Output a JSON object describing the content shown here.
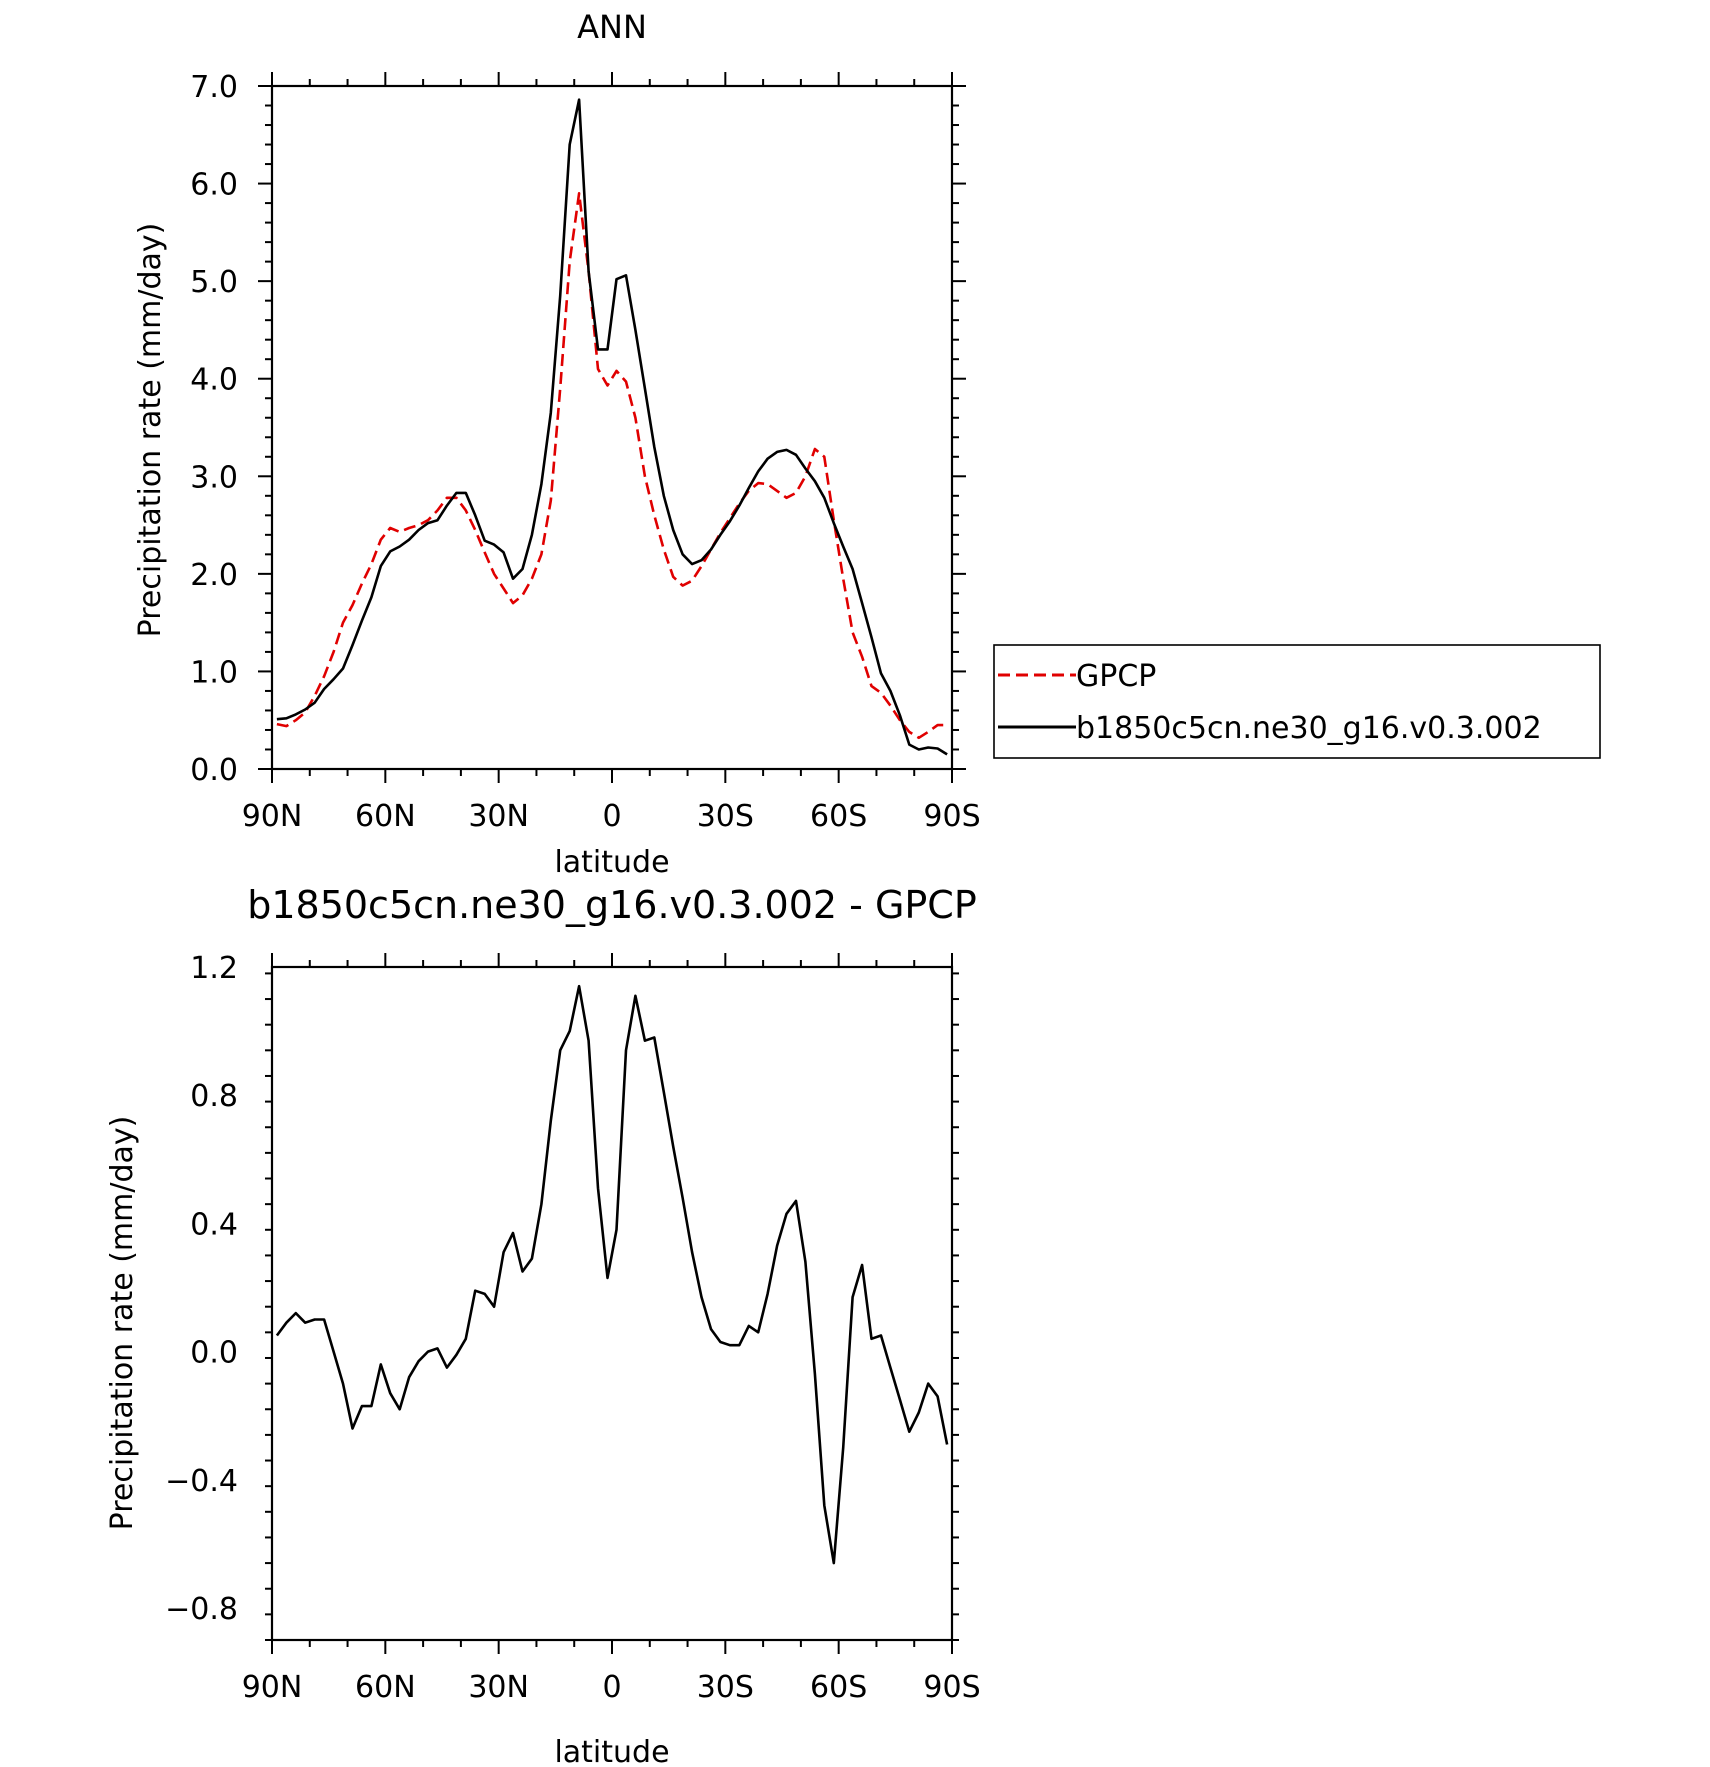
{
  "chart_data": [
    {
      "type": "line",
      "title": "ANN",
      "xlabel": "latitude",
      "ylabel": "Precipitation rate (mm/day)",
      "xlim": [
        90,
        -90
      ],
      "ylim": [
        0,
        7
      ],
      "xticks": [
        90,
        60,
        30,
        0,
        -30,
        -60,
        -90
      ],
      "xtick_labels": [
        "90N",
        "60N",
        "30N",
        "0",
        "30S",
        "60S",
        "90S"
      ],
      "yticks": [
        0,
        1,
        2,
        3,
        4,
        5,
        6,
        7
      ],
      "ytick_labels": [
        "0.0",
        "1.0",
        "2.0",
        "3.0",
        "4.0",
        "5.0",
        "6.0",
        "7.0"
      ],
      "grid": false,
      "legend_position": "right",
      "series": [
        {
          "name": "GPCP",
          "color": "#e00000",
          "style": "dashed",
          "x": [
            88.7,
            86.2,
            83.7,
            81.2,
            78.7,
            76.2,
            73.7,
            71.2,
            68.7,
            66.2,
            63.7,
            61.2,
            58.7,
            56.2,
            53.7,
            51.2,
            48.7,
            46.2,
            43.7,
            41.2,
            38.7,
            36.2,
            33.7,
            31.2,
            28.7,
            26.2,
            23.7,
            21.2,
            18.7,
            16.2,
            13.7,
            11.2,
            8.7,
            6.2,
            3.7,
            1.2,
            -1.2,
            -3.7,
            -6.2,
            -8.7,
            -11.2,
            -13.7,
            -16.2,
            -18.7,
            -21.2,
            -23.7,
            -26.2,
            -28.7,
            -31.2,
            -33.7,
            -36.2,
            -38.7,
            -41.2,
            -43.7,
            -46.2,
            -48.7,
            -51.2,
            -53.7,
            -56.2,
            -58.7,
            -61.2,
            -63.7,
            -66.2,
            -68.7,
            -71.2,
            -73.7,
            -76.2,
            -78.7,
            -81.2,
            -83.7,
            -86.2,
            -88.7
          ],
          "y": [
            0.46,
            0.44,
            0.5,
            0.58,
            0.75,
            0.95,
            1.2,
            1.5,
            1.68,
            1.9,
            2.1,
            2.35,
            2.47,
            2.43,
            2.47,
            2.5,
            2.55,
            2.65,
            2.78,
            2.78,
            2.65,
            2.45,
            2.22,
            2.0,
            1.85,
            1.7,
            1.78,
            1.95,
            2.2,
            2.75,
            3.9,
            5.2,
            5.9,
            5.1,
            4.1,
            3.93,
            4.08,
            3.97,
            3.6,
            3.0,
            2.6,
            2.25,
            1.97,
            1.88,
            1.93,
            2.08,
            2.25,
            2.42,
            2.57,
            2.72,
            2.85,
            2.93,
            2.92,
            2.85,
            2.78,
            2.83,
            3.0,
            3.28,
            3.2,
            2.55,
            1.95,
            1.4,
            1.15,
            0.85,
            0.78,
            0.65,
            0.5,
            0.38,
            0.32,
            0.38,
            0.45,
            0.45
          ]
        },
        {
          "name": "b1850c5cn.ne30_g16.v0.3.002",
          "color": "#000000",
          "style": "solid",
          "x": [
            88.7,
            86.2,
            83.7,
            81.2,
            78.7,
            76.2,
            73.7,
            71.2,
            68.7,
            66.2,
            63.7,
            61.2,
            58.7,
            56.2,
            53.7,
            51.2,
            48.7,
            46.2,
            43.7,
            41.2,
            38.7,
            36.2,
            33.7,
            31.2,
            28.7,
            26.2,
            23.7,
            21.2,
            18.7,
            16.2,
            13.7,
            11.2,
            8.7,
            6.2,
            3.7,
            1.2,
            -1.2,
            -3.7,
            -6.2,
            -8.7,
            -11.2,
            -13.7,
            -16.2,
            -18.7,
            -21.2,
            -23.7,
            -26.2,
            -28.7,
            -31.2,
            -33.7,
            -36.2,
            -38.7,
            -41.2,
            -43.7,
            -46.2,
            -48.7,
            -51.2,
            -53.7,
            -56.2,
            -58.7,
            -61.2,
            -63.7,
            -66.2,
            -68.7,
            -71.2,
            -73.7,
            -76.2,
            -78.7,
            -81.2,
            -83.7,
            -86.2,
            -88.7
          ],
          "y": [
            0.51,
            0.52,
            0.56,
            0.61,
            0.68,
            0.82,
            0.92,
            1.03,
            1.27,
            1.52,
            1.76,
            2.08,
            2.23,
            2.28,
            2.35,
            2.45,
            2.52,
            2.55,
            2.7,
            2.83,
            2.83,
            2.6,
            2.34,
            2.3,
            2.22,
            1.95,
            2.05,
            2.4,
            2.92,
            3.65,
            4.85,
            6.4,
            6.86,
            5.1,
            4.3,
            4.3,
            5.02,
            5.06,
            4.5,
            3.9,
            3.3,
            2.8,
            2.45,
            2.2,
            2.1,
            2.14,
            2.25,
            2.4,
            2.54,
            2.7,
            2.88,
            3.05,
            3.18,
            3.25,
            3.27,
            3.22,
            3.08,
            2.95,
            2.78,
            2.52,
            2.28,
            2.05,
            1.7,
            1.35,
            0.98,
            0.8,
            0.55,
            0.25,
            0.2,
            0.22,
            0.21,
            0.15
          ]
        }
      ]
    },
    {
      "type": "line",
      "title": "b1850c5cn.ne30_g16.v0.3.002 - GPCP",
      "xlabel": "latitude",
      "ylabel": "Precipitation rate (mm/day)",
      "xlim": [
        90,
        -90
      ],
      "ylim": [
        -0.9,
        1.2
      ],
      "xticks": [
        90,
        60,
        30,
        0,
        -30,
        -60,
        -90
      ],
      "xtick_labels": [
        "90N",
        "60N",
        "30N",
        "0",
        "30S",
        "60S",
        "90S"
      ],
      "yticks": [
        -0.8,
        -0.4,
        0.0,
        0.4,
        0.8,
        1.2
      ],
      "ytick_labels": [
        "−0.8",
        "−0.4",
        "0.0",
        "0.4",
        "0.8",
        "1.2"
      ],
      "grid": false,
      "series": [
        {
          "color": "#000000",
          "style": "solid",
          "x": [
            88.7,
            86.2,
            83.7,
            81.2,
            78.7,
            76.2,
            73.7,
            71.2,
            68.7,
            66.2,
            63.7,
            61.2,
            58.7,
            56.2,
            53.7,
            51.2,
            48.7,
            46.2,
            43.7,
            41.2,
            38.7,
            36.2,
            33.7,
            31.2,
            28.7,
            26.2,
            23.7,
            21.2,
            18.7,
            16.2,
            13.7,
            11.2,
            8.7,
            6.2,
            3.7,
            1.2,
            -1.2,
            -3.7,
            -6.2,
            -8.7,
            -11.2,
            -13.7,
            -16.2,
            -18.7,
            -21.2,
            -23.7,
            -26.2,
            -28.7,
            -31.2,
            -33.7,
            -36.2,
            -38.7,
            -41.2,
            -43.7,
            -46.2,
            -48.7,
            -51.2,
            -53.7,
            -56.2,
            -58.7,
            -61.2,
            -63.7,
            -66.2,
            -68.7,
            -71.2,
            -73.7,
            -76.2,
            -78.7,
            -81.2,
            -83.7,
            -86.2,
            -88.7
          ],
          "y": [
            0.05,
            0.09,
            0.12,
            0.09,
            0.1,
            0.1,
            0.0,
            -0.1,
            -0.24,
            -0.17,
            -0.17,
            -0.04,
            -0.13,
            -0.18,
            -0.08,
            -0.03,
            0.0,
            0.01,
            -0.05,
            -0.01,
            0.04,
            0.19,
            0.18,
            0.14,
            0.31,
            0.37,
            0.25,
            0.29,
            0.46,
            0.72,
            0.94,
            1.0,
            1.14,
            0.97,
            0.51,
            0.23,
            0.38,
            0.94,
            1.11,
            0.97,
            0.98,
            0.81,
            0.64,
            0.48,
            0.31,
            0.17,
            0.07,
            0.03,
            0.02,
            0.02,
            0.08,
            0.06,
            0.18,
            0.33,
            0.43,
            0.47,
            0.28,
            -0.07,
            -0.48,
            -0.66,
            -0.3,
            0.17,
            0.27,
            0.04,
            0.05,
            -0.05,
            -0.15,
            -0.25,
            -0.19,
            -0.1,
            -0.14,
            -0.29
          ]
        }
      ]
    }
  ]
}
